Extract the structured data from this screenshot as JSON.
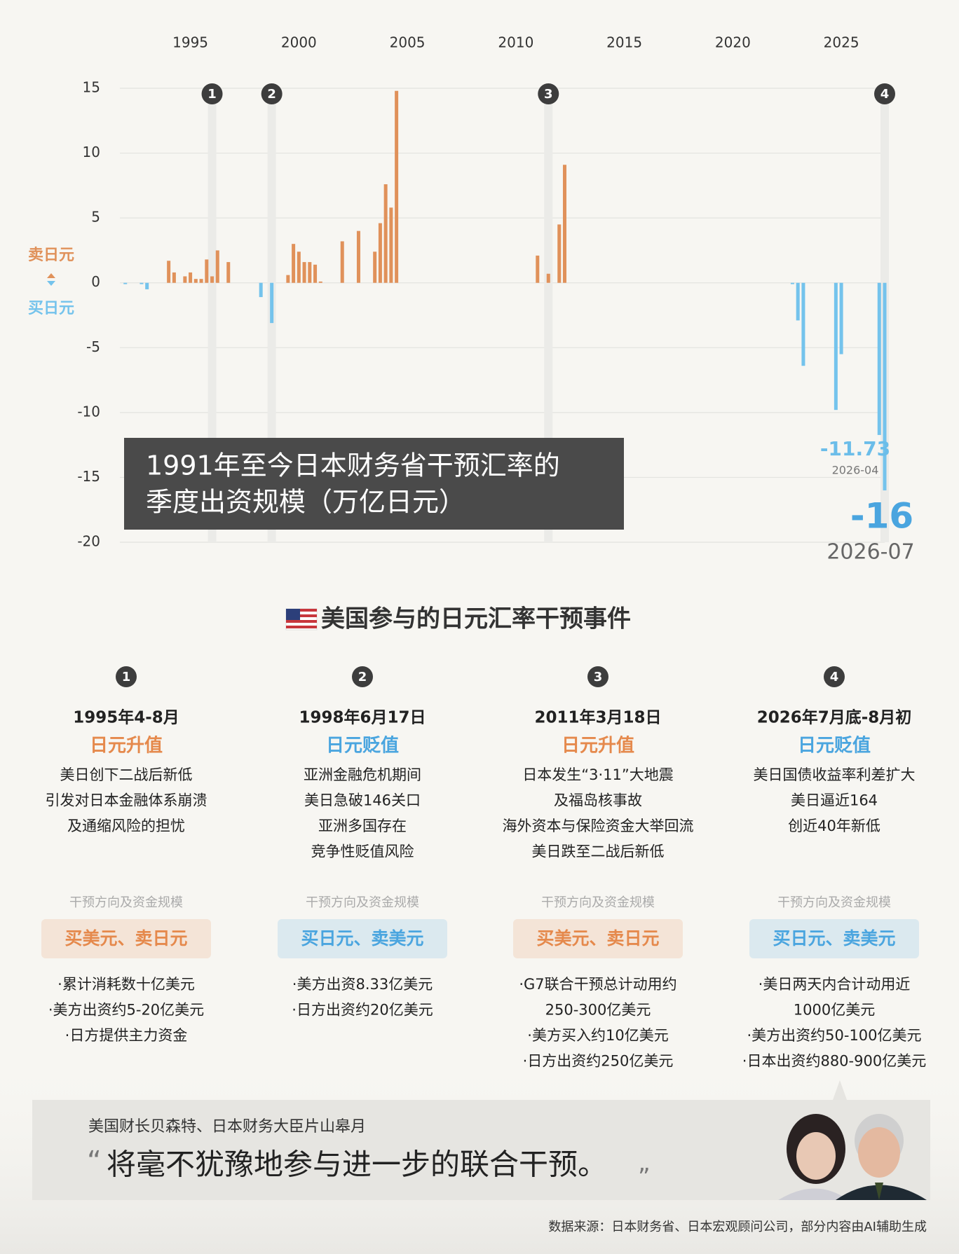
{
  "chart_data": {
    "type": "bar",
    "title": [
      "1991年至今日本财务省干预汇率的",
      "季度出资规模（万亿日元）"
    ],
    "xlim": [
      1991.75,
      2027.0
    ],
    "xticks": [
      1995,
      2000,
      2005,
      2010,
      2015,
      2020,
      2025
    ],
    "ylim": [
      -20,
      15
    ],
    "yticks": [
      15,
      10,
      5,
      0,
      -5,
      -10,
      -15,
      -20
    ],
    "grid": true,
    "series": [
      {
        "name": "卖日元",
        "color": "#e0915a",
        "x": [
          1994.0,
          1994.25,
          1994.75,
          1995.0,
          1995.25,
          1995.5,
          1995.75,
          1996.0,
          1996.25,
          1996.75,
          1999.5,
          1999.75,
          2000.0,
          2000.25,
          2000.5,
          2000.75,
          2001.0,
          2002.0,
          2002.75,
          2003.5,
          2003.75,
          2004.0,
          2004.25,
          2004.5,
          2011.0,
          2011.5,
          2012.0,
          2012.25
        ],
        "values": [
          1.7,
          0.8,
          0.5,
          0.8,
          0.3,
          0.3,
          1.8,
          0.5,
          2.5,
          1.6,
          0.6,
          3.0,
          2.4,
          1.6,
          1.6,
          1.4,
          0.1,
          3.2,
          4.0,
          2.4,
          4.6,
          7.6,
          5.8,
          14.8,
          2.1,
          0.7,
          4.5,
          9.1
        ]
      },
      {
        "name": "买日元",
        "color": "#74c3ec",
        "x": [
          1992.0,
          1992.75,
          1993.0,
          1998.25,
          1998.75,
          2022.75,
          2023.0,
          2023.25,
          2024.75,
          2025.0,
          2026.75,
          2027.0
        ],
        "values": [
          -0.1,
          -0.1,
          -0.5,
          -1.1,
          -3.1,
          -0.1,
          -2.9,
          -6.4,
          -9.8,
          -5.5,
          -11.73,
          -16
        ]
      }
    ],
    "markers": [
      {
        "label": "1",
        "x": 1996.0
      },
      {
        "label": "2",
        "x": 1998.75
      },
      {
        "label": "3",
        "x": 2011.5
      },
      {
        "label": "4",
        "x": 2027.0
      }
    ],
    "annotations": [
      {
        "text": "2026-04"
      },
      {
        "text": "2026-07"
      }
    ]
  },
  "section_title": "美国参与的日元汇率干预事件",
  "events": [
    {
      "number": "1",
      "date": "1995年4-8月",
      "type": "日元升值",
      "color": "#e5894c",
      "description": [
        "美日创下二战后新低",
        "引发对日本金融体系崩溃",
        "及通缩风险的担忧"
      ],
      "label": "干预方向及资金规模",
      "action": "买美元、卖日元",
      "details": [
        "·累计消耗数十亿美元",
        "·美方出资约5-20亿美元",
        "·日方提供主力资金"
      ]
    },
    {
      "number": "2",
      "date": "1998年6月17日",
      "type": "日元贬值",
      "color": "#4aa5df",
      "description": [
        "亚洲金融危机期间",
        "美日急破146关口",
        "亚洲多国存在",
        "竞争性贬值风险"
      ],
      "label": "干预方向及资金规模",
      "action": "买日元、卖美元",
      "details": [
        "·美方出资8.33亿美元",
        "·日方出资约20亿美元"
      ]
    },
    {
      "number": "3",
      "date": "2011年3月18日",
      "type": "日元升值",
      "color": "#e5894c",
      "description": [
        "日本发生“3·11”大地震",
        "及福岛核事故",
        "海外资本与保险资金大举回流",
        "美日跌至二战后新低"
      ],
      "label": "干预方向及资金规模",
      "action": "买美元、卖日元",
      "details": [
        "·G7联合干预总计动用约",
        "250-300亿美元",
        "·美方买入约10亿美元",
        "·日方出资约250亿美元"
      ]
    },
    {
      "number": "4",
      "date": "2026年7月底-8月初",
      "type": "日元贬值",
      "color": "#4aa5df",
      "description": [
        "美日国债收益率利差扩大",
        "美日逼近164",
        "创近40年新低"
      ],
      "label": "干预方向及资金规模",
      "action": "买日元、卖美元",
      "details": [
        "·美日两天内合计动用近",
        "1000亿美元",
        "·美方出资约50-100亿美元",
        "·日本出资约880-900亿美元"
      ]
    }
  ],
  "quote": {
    "speaker": "美国财长贝森特、日本财务大臣片山皋月",
    "open": "“",
    "text": "将毫不犹豫地参与进一步的联合干预。",
    "close": "”"
  },
  "source": "数据来源：日本财务省、日本宏观顾问公司，部分内容由AI辅助生成"
}
